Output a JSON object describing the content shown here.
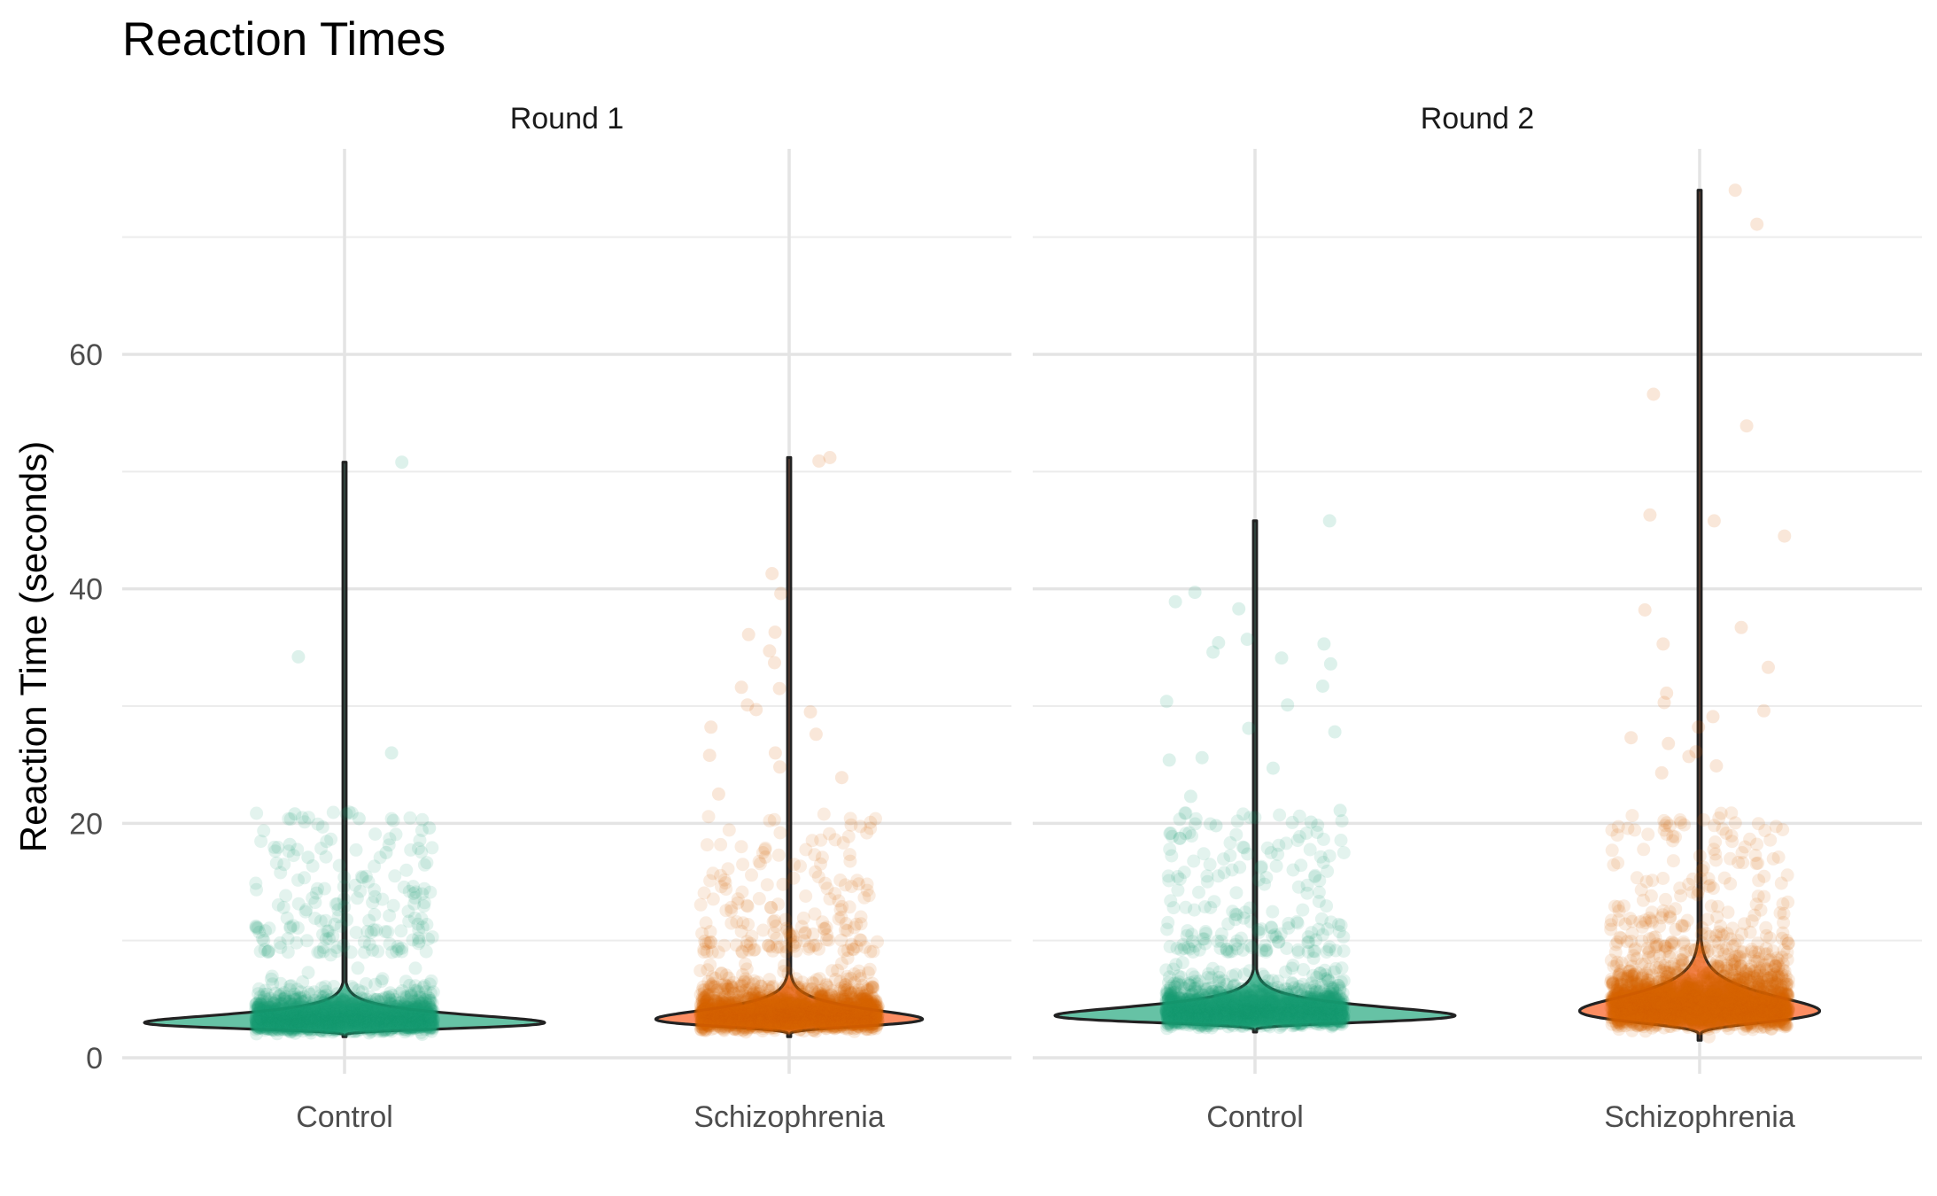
{
  "chart_data": {
    "type": "violin",
    "title": "Reaction Times",
    "ylabel": "Reaction Time (seconds)",
    "xlabel": "",
    "ylim": [
      0,
      72
    ],
    "yticks": [
      0,
      20,
      40,
      60
    ],
    "ytick_labels": [
      "0",
      "20",
      "40",
      "60"
    ],
    "categories": [
      "Control",
      "Schizophrenia"
    ],
    "grid": true,
    "legend": "none",
    "colors": {
      "Control_fill": "#66C2A5",
      "Control_points": "#1B9E77",
      "Schizophrenia_fill": "#FC8D62",
      "Schizophrenia_points": "#D95F02"
    },
    "panels": [
      {
        "label": "Round 1",
        "groups": [
          {
            "category": "Control",
            "min": 1.8,
            "mode": 3.0,
            "max": 50.8,
            "max_half_width": 0.45,
            "outliers": [
              50.8,
              34.2,
              26.0,
              20.8,
              20.4,
              19.6,
              18.2,
              17.5,
              17.1
            ]
          },
          {
            "category": "Schizophrenia",
            "min": 1.8,
            "mode": 3.3,
            "max": 51.2,
            "max_half_width": 0.3,
            "outliers": [
              51.2,
              50.9,
              41.3,
              39.6,
              36.3,
              36.1,
              34.7,
              33.7,
              31.6,
              31.5,
              30.1,
              29.7,
              29.5,
              28.2,
              27.6,
              26.0,
              25.8,
              24.8,
              23.9,
              22.5
            ]
          }
        ]
      },
      {
        "label": "Round 2",
        "groups": [
          {
            "category": "Control",
            "min": 2.2,
            "mode": 3.6,
            "max": 45.8,
            "max_half_width": 0.45,
            "outliers": [
              45.8,
              39.7,
              38.9,
              38.3,
              35.7,
              35.4,
              35.3,
              34.6,
              34.1,
              33.6,
              31.7,
              30.4,
              30.1,
              28.1,
              27.8,
              25.6,
              25.4,
              24.7,
              22.3,
              21.1,
              20.1,
              19.8
            ]
          },
          {
            "category": "Schizophrenia",
            "min": 1.5,
            "mode": 4.0,
            "max": 74.0,
            "max_half_width": 0.27,
            "outliers": [
              74.0,
              71.1,
              56.6,
              53.9,
              46.3,
              45.8,
              44.5,
              38.2,
              36.7,
              35.3,
              33.3,
              31.1,
              30.3,
              29.6,
              29.1,
              28.2,
              27.3,
              26.8,
              26.1,
              25.7,
              24.9,
              24.3
            ]
          }
        ]
      }
    ]
  }
}
